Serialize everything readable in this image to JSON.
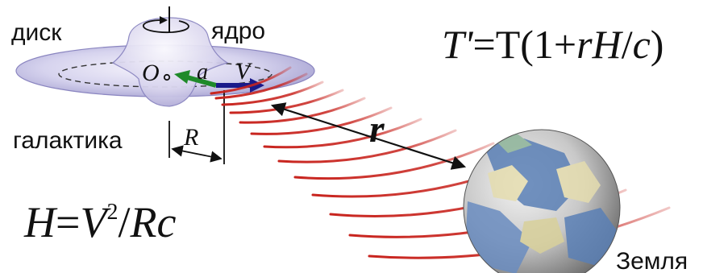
{
  "labels": {
    "disk": "диск",
    "core": "ядро",
    "galaxy": "галактика",
    "earth": "Земля",
    "center": "O",
    "accel": "a",
    "velocity": "V",
    "radius": "R",
    "distance": "r"
  },
  "formulas": {
    "period": {
      "lhs": "T'",
      "eq": "=T(1+",
      "r": "r",
      "H": "H",
      "slash": "/",
      "c": "c",
      "close": ")"
    },
    "hubble": {
      "H": "H",
      "eq": "=",
      "V": "V",
      "exp": "2",
      "slash": "/",
      "Rc": "Rc"
    }
  },
  "colors": {
    "waves": "#c8241e",
    "accel_arrow": "#1f8a2a",
    "velocity_arrow": "#1a1a8a",
    "disk_fill": "#c9c6e6",
    "earth_ocean": "#5a7fb5",
    "earth_land": "#e4dcae"
  }
}
